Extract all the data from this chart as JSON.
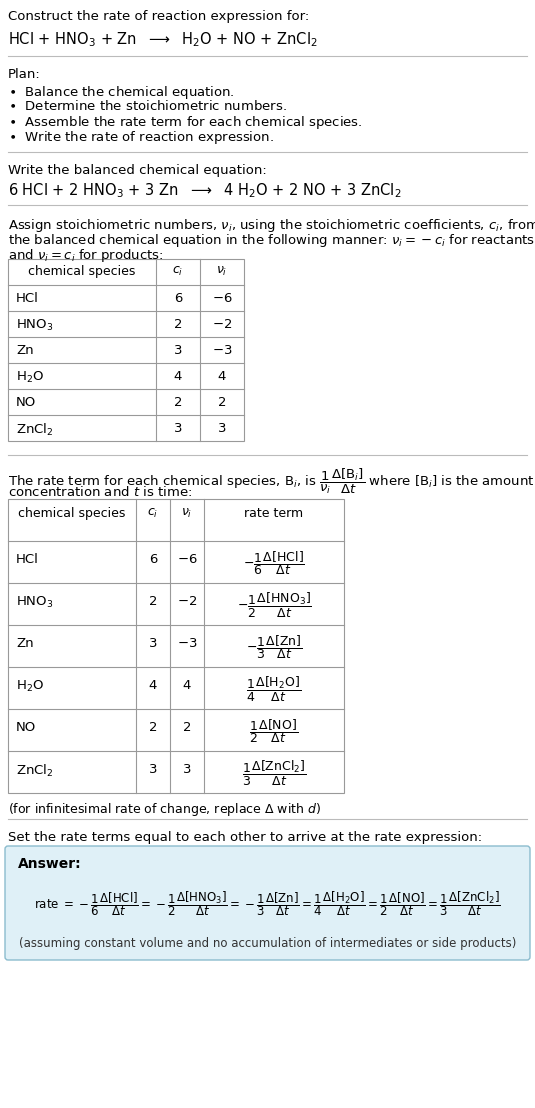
{
  "bg_color": "#ffffff",
  "title_line1": "Construct the rate of reaction expression for:",
  "title_line2": "HCl + HNO$_3$ + Zn  $\\longrightarrow$  H$_2$O + NO + ZnCl$_2$",
  "plan_header": "Plan:",
  "plan_items": [
    "$\\bullet$  Balance the chemical equation.",
    "$\\bullet$  Determine the stoichiometric numbers.",
    "$\\bullet$  Assemble the rate term for each chemical species.",
    "$\\bullet$  Write the rate of reaction expression."
  ],
  "balanced_header": "Write the balanced chemical equation:",
  "balanced_eq": "6 HCl + 2 HNO$_3$ + 3 Zn  $\\longrightarrow$  4 H$_2$O + 2 NO + 3 ZnCl$_2$",
  "stoich_intro_1": "Assign stoichiometric numbers, $\\nu_i$, using the stoichiometric coefficients, $c_i$, from",
  "stoich_intro_2": "the balanced chemical equation in the following manner: $\\nu_i = -c_i$ for reactants",
  "stoich_intro_3": "and $\\nu_i = c_i$ for products:",
  "table1_headers": [
    "chemical species",
    "$c_i$",
    "$\\nu_i$"
  ],
  "table1_rows": [
    [
      "HCl",
      "6",
      "$-6$"
    ],
    [
      "HNO$_3$",
      "2",
      "$-2$"
    ],
    [
      "Zn",
      "3",
      "$-3$"
    ],
    [
      "H$_2$O",
      "4",
      "4"
    ],
    [
      "NO",
      "2",
      "2"
    ],
    [
      "ZnCl$_2$",
      "3",
      "3"
    ]
  ],
  "rate_intro_1": "The rate term for each chemical species, B$_i$, is $\\dfrac{1}{\\nu_i}\\dfrac{\\Delta[\\mathrm{B}_i]}{\\Delta t}$ where [B$_i$] is the amount",
  "rate_intro_2": "concentration and $t$ is time:",
  "table2_headers": [
    "chemical species",
    "$c_i$",
    "$\\nu_i$",
    "rate term"
  ],
  "table2_rows": [
    [
      "HCl",
      "6",
      "$-6$",
      "$-\\dfrac{1}{6}\\dfrac{\\Delta[\\mathrm{HCl}]}{\\Delta t}$"
    ],
    [
      "HNO$_3$",
      "2",
      "$-2$",
      "$-\\dfrac{1}{2}\\dfrac{\\Delta[\\mathrm{HNO_3}]}{\\Delta t}$"
    ],
    [
      "Zn",
      "3",
      "$-3$",
      "$-\\dfrac{1}{3}\\dfrac{\\Delta[\\mathrm{Zn}]}{\\Delta t}$"
    ],
    [
      "H$_2$O",
      "4",
      "4",
      "$\\dfrac{1}{4}\\dfrac{\\Delta[\\mathrm{H_2O}]}{\\Delta t}$"
    ],
    [
      "NO",
      "2",
      "2",
      "$\\dfrac{1}{2}\\dfrac{\\Delta[\\mathrm{NO}]}{\\Delta t}$"
    ],
    [
      "ZnCl$_2$",
      "3",
      "3",
      "$\\dfrac{1}{3}\\dfrac{\\Delta[\\mathrm{ZnCl_2}]}{\\Delta t}$"
    ]
  ],
  "infinitesimal_note": "(for infinitesimal rate of change, replace $\\Delta$ with $d$)",
  "set_equal_text": "Set the rate terms equal to each other to arrive at the rate expression:",
  "answer_label": "Answer:",
  "answer_box_color": "#dff0f7",
  "answer_box_border": "#8bbcce",
  "rate_expr_1": "rate $= -\\dfrac{1}{6}\\dfrac{\\Delta[\\mathrm{HCl}]}{\\Delta t} = -\\dfrac{1}{2}\\dfrac{\\Delta[\\mathrm{HNO_3}]}{\\Delta t} = -\\dfrac{1}{3}\\dfrac{\\Delta[\\mathrm{Zn}]}{\\Delta t} = \\dfrac{1}{4}\\dfrac{\\Delta[\\mathrm{H_2O}]}{\\Delta t} = \\dfrac{1}{2}\\dfrac{\\Delta[\\mathrm{NO}]}{\\Delta t} = \\dfrac{1}{3}\\dfrac{\\Delta[\\mathrm{ZnCl_2}]}{\\Delta t}$",
  "assuming_note": "(assuming constant volume and no accumulation of intermediates or side products)"
}
